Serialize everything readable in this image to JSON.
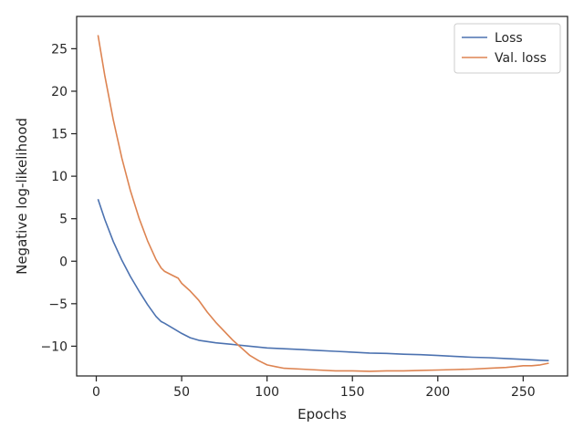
{
  "chart_data": {
    "type": "line",
    "xlabel": "Epochs",
    "ylabel": "Negative log-likelihood",
    "xlim": [
      -11.5,
      276
    ],
    "ylim": [
      -13.5,
      28.8
    ],
    "xticks": [
      0,
      50,
      100,
      150,
      200,
      250
    ],
    "yticks": [
      -10,
      -5,
      0,
      5,
      10,
      15,
      20,
      25
    ],
    "grid": false,
    "legend_position": "top-right",
    "series": [
      {
        "name": "Loss",
        "color": "#4c72b0",
        "x": [
          1,
          5,
          10,
          15,
          20,
          25,
          30,
          35,
          38,
          40,
          45,
          50,
          55,
          60,
          70,
          80,
          90,
          100,
          110,
          120,
          130,
          140,
          150,
          160,
          170,
          180,
          190,
          200,
          210,
          220,
          230,
          240,
          250,
          255,
          260,
          265
        ],
        "y": [
          7.3,
          4.9,
          2.3,
          0.1,
          -1.8,
          -3.5,
          -5.1,
          -6.5,
          -7.1,
          -7.3,
          -7.9,
          -8.5,
          -9.0,
          -9.3,
          -9.6,
          -9.8,
          -10.0,
          -10.2,
          -10.3,
          -10.4,
          -10.5,
          -10.6,
          -10.7,
          -10.8,
          -10.85,
          -10.95,
          -11.0,
          -11.1,
          -11.2,
          -11.3,
          -11.35,
          -11.45,
          -11.55,
          -11.6,
          -11.65,
          -11.7
        ]
      },
      {
        "name": "Val. loss",
        "color": "#dd8452",
        "x": [
          1,
          5,
          10,
          15,
          20,
          25,
          30,
          35,
          38,
          40,
          45,
          48,
          50,
          55,
          60,
          65,
          70,
          80,
          90,
          95,
          100,
          105,
          110,
          120,
          130,
          140,
          150,
          160,
          170,
          180,
          190,
          200,
          210,
          220,
          230,
          240,
          245,
          250,
          255,
          260,
          265
        ],
        "y": [
          26.6,
          21.8,
          16.6,
          12.1,
          8.3,
          5.1,
          2.4,
          0.2,
          -0.8,
          -1.2,
          -1.7,
          -2.0,
          -2.6,
          -3.5,
          -4.6,
          -6.0,
          -7.2,
          -9.3,
          -11.1,
          -11.7,
          -12.2,
          -12.4,
          -12.6,
          -12.7,
          -12.8,
          -12.9,
          -12.9,
          -12.95,
          -12.9,
          -12.9,
          -12.85,
          -12.8,
          -12.75,
          -12.7,
          -12.6,
          -12.5,
          -12.4,
          -12.3,
          -12.3,
          -12.2,
          -12.0
        ]
      }
    ]
  }
}
